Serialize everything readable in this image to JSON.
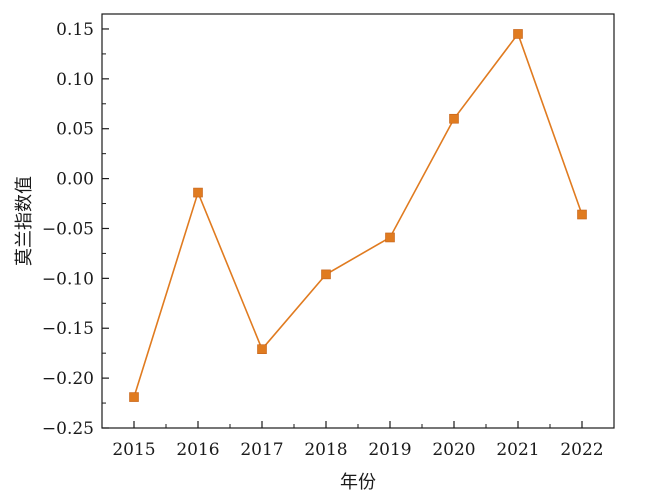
{
  "chart_data": {
    "type": "line",
    "title": "",
    "xlabel": "年份",
    "ylabel": "莫兰指数值",
    "x": [
      "2015",
      "2016",
      "2017",
      "2018",
      "2019",
      "2020",
      "2021",
      "2022"
    ],
    "series": [
      {
        "values": [
          -0.219,
          -0.014,
          -0.171,
          -0.096,
          -0.059,
          0.06,
          0.145,
          -0.036
        ],
        "color": "#e07b20",
        "marker": "square"
      }
    ],
    "ylim": [
      -0.25,
      0.165
    ],
    "yticks": [
      0.15,
      0.1,
      0.05,
      0.0,
      -0.05,
      -0.1,
      -0.15,
      -0.2,
      -0.25
    ],
    "ytick_labels": [
      "0.15",
      "0.10",
      "0.05",
      "0.00",
      "−0.05",
      "−0.10",
      "−0.15",
      "−0.20",
      "−0.25"
    ],
    "grid": false,
    "legend": "none"
  }
}
